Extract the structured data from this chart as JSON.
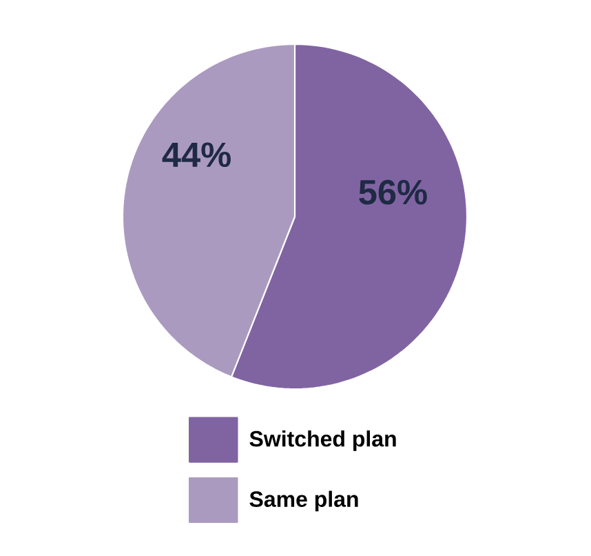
{
  "chart_data": {
    "type": "pie",
    "categories": [
      "Switched plan",
      "Same plan"
    ],
    "values": [
      56,
      44
    ],
    "colors": [
      "#8064a2",
      "#ab9ac0"
    ],
    "value_labels": [
      "56%",
      "44%"
    ],
    "legend": "bottom"
  }
}
